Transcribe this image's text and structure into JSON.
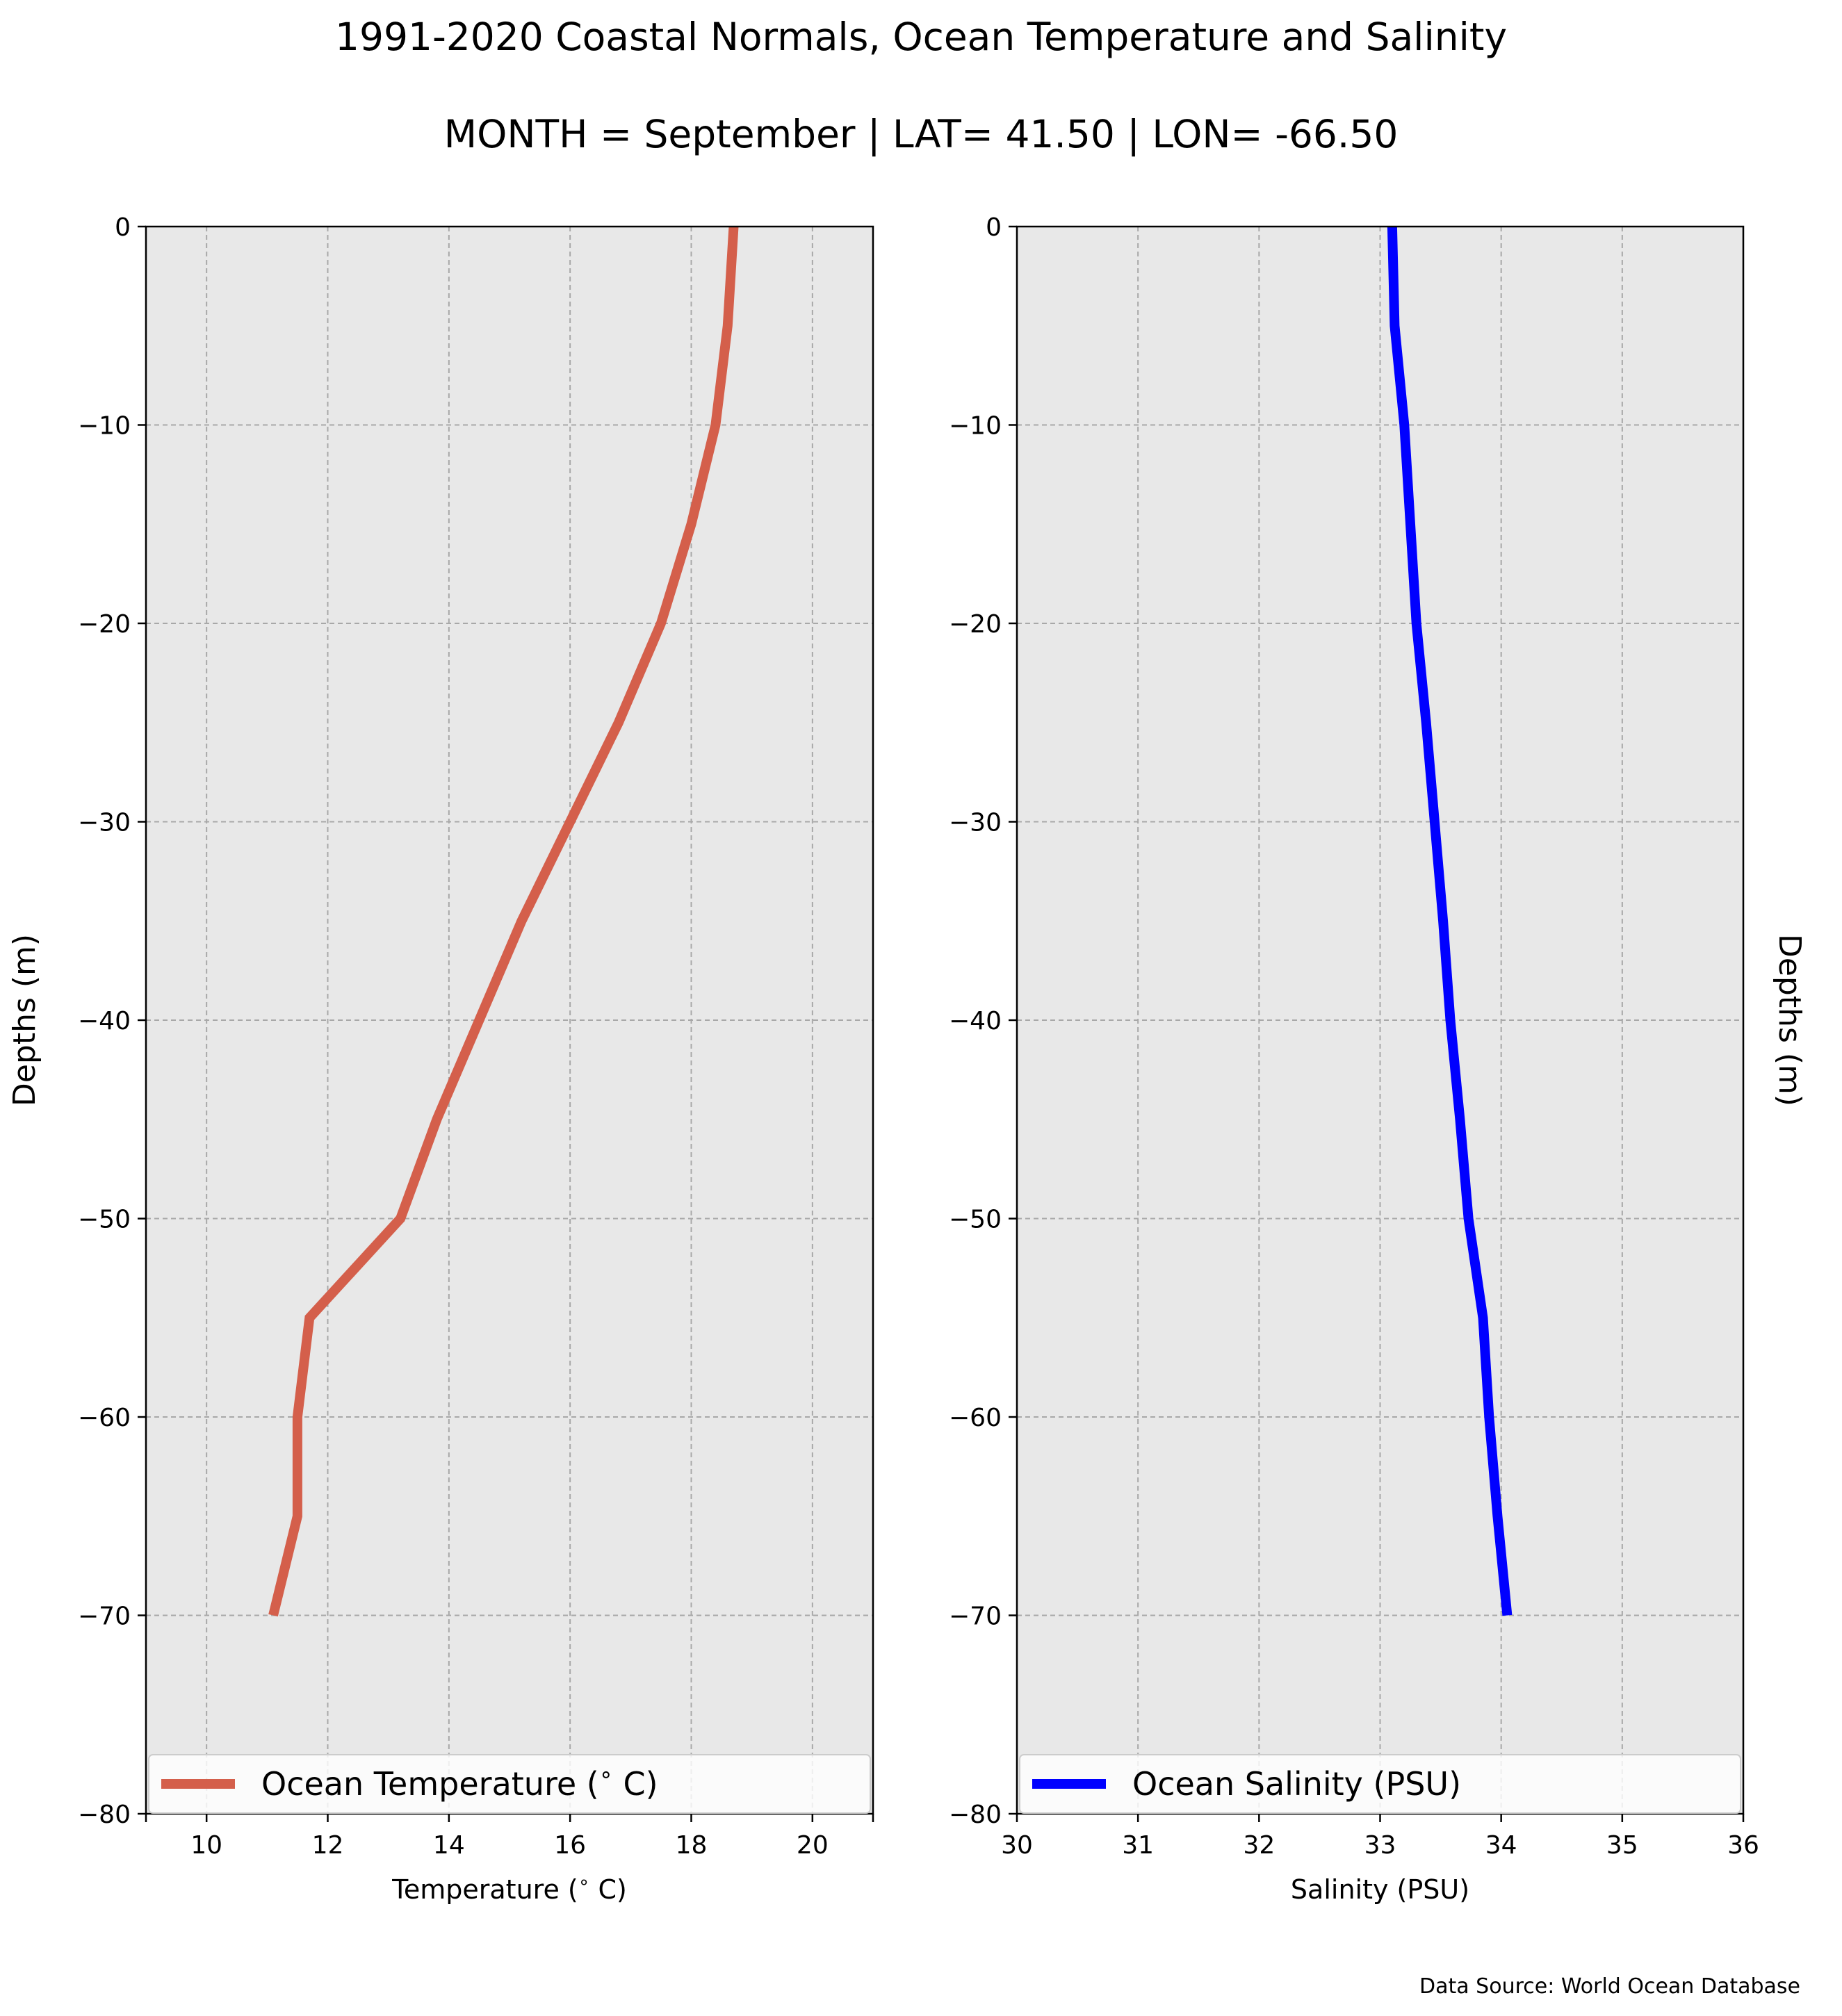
{
  "figure": {
    "title_line1": "1991-2020 Coastal Normals, Ocean Temperature and Salinity",
    "title_line2": "MONTH = September | LAT= 41.50 | LON= -66.50",
    "source_note": "Data Source: World Ocean Database"
  },
  "chart_data": [
    {
      "type": "line",
      "xlabel": "Temperature ($^\\circ$C)",
      "ylabel": "Depths (m)",
      "xlim": [
        9,
        21
      ],
      "ylim": [
        -80,
        0
      ],
      "x_ticks": [
        10,
        12,
        14,
        16,
        18,
        20
      ],
      "y_ticks": [
        0,
        -10,
        -20,
        -30,
        -40,
        -50,
        -60,
        -70,
        -80
      ],
      "grid": true,
      "background": "#e8e8e8",
      "legend_position": "bottom",
      "series": [
        {
          "name": "Ocean Temperature ($^\\circ$C)",
          "color": "#d45f4b",
          "depth": [
            0,
            -5,
            -10,
            -15,
            -20,
            -25,
            -30,
            -35,
            -40,
            -45,
            -50,
            -55,
            -60,
            -65,
            -70
          ],
          "values": [
            18.7,
            18.6,
            18.4,
            18.0,
            17.5,
            16.8,
            16.0,
            15.2,
            14.5,
            13.8,
            13.2,
            11.7,
            11.5,
            11.5,
            11.1
          ]
        }
      ]
    },
    {
      "type": "line",
      "xlabel": "Salinity (PSU)",
      "ylabel": "Depths (m)",
      "xlim": [
        30,
        36
      ],
      "ylim": [
        -80,
        0
      ],
      "x_ticks": [
        30,
        31,
        32,
        33,
        34,
        35,
        36
      ],
      "y_ticks": [
        0,
        -10,
        -20,
        -30,
        -40,
        -50,
        -60,
        -70,
        -80
      ],
      "grid": true,
      "background": "#e8e8e8",
      "legend_position": "bottom",
      "series": [
        {
          "name": "Ocean Salinity (PSU)",
          "color": "#0000ff",
          "depth": [
            0,
            -5,
            -10,
            -15,
            -20,
            -25,
            -30,
            -35,
            -40,
            -45,
            -50,
            -55,
            -60,
            -65,
            -70
          ],
          "values": [
            33.1,
            33.12,
            33.2,
            33.25,
            33.3,
            33.38,
            33.45,
            33.52,
            33.58,
            33.66,
            33.73,
            33.85,
            33.9,
            33.97,
            34.05
          ]
        }
      ]
    }
  ]
}
